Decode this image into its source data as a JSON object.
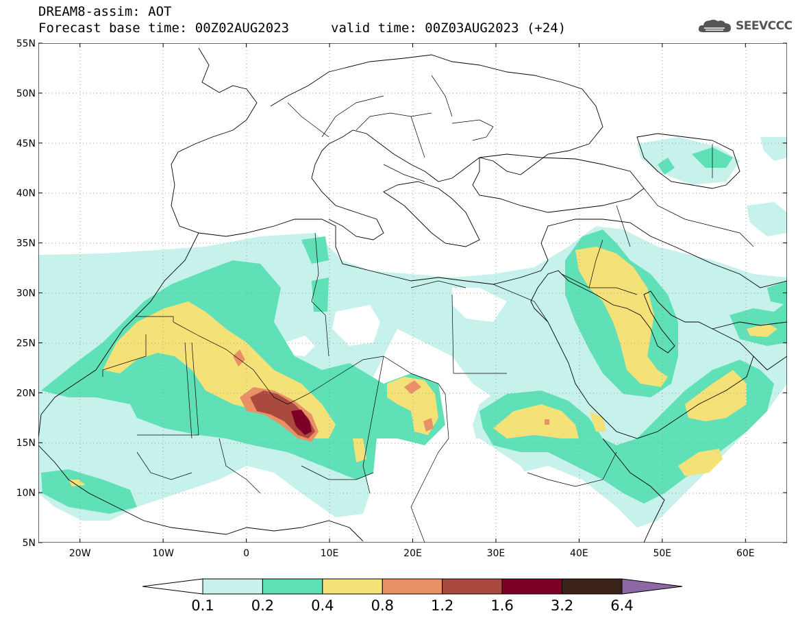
{
  "header": {
    "title_line1": "DREAM8-assim: AOT",
    "title_line2": "Forecast base time: 00Z02AUG2023",
    "valid_time": "valid time: 00Z03AUG2023 (+24)"
  },
  "logo": {
    "text": "SEEVCCC",
    "icon": "cloud-icon"
  },
  "map": {
    "lon_range": [
      -25,
      65
    ],
    "lat_range": [
      5,
      55
    ],
    "lat_ticks": [
      {
        "value": 55,
        "label": "55N"
      },
      {
        "value": 50,
        "label": "50N"
      },
      {
        "value": 45,
        "label": "45N"
      },
      {
        "value": 40,
        "label": "40N"
      },
      {
        "value": 35,
        "label": "35N"
      },
      {
        "value": 30,
        "label": "30N"
      },
      {
        "value": 25,
        "label": "25N"
      },
      {
        "value": 20,
        "label": "20N"
      },
      {
        "value": 15,
        "label": "15N"
      },
      {
        "value": 10,
        "label": "10N"
      },
      {
        "value": 5,
        "label": "5N"
      }
    ],
    "lon_ticks": [
      {
        "value": -20,
        "label": "20W"
      },
      {
        "value": -10,
        "label": "10W"
      },
      {
        "value": 0,
        "label": "0"
      },
      {
        "value": 10,
        "label": "10E"
      },
      {
        "value": 20,
        "label": "20E"
      },
      {
        "value": 30,
        "label": "30E"
      },
      {
        "value": 40,
        "label": "40E"
      },
      {
        "value": 50,
        "label": "50E"
      },
      {
        "value": 60,
        "label": "60E"
      }
    ]
  },
  "colorbar": {
    "levels": [
      "0.1",
      "0.2",
      "0.4",
      "0.8",
      "1.2",
      "1.6",
      "3.2",
      "6.4"
    ],
    "colors": [
      "#ffffff",
      "#c7f1eb",
      "#5fe0b6",
      "#f4e278",
      "#ea9066",
      "#aa4a3f",
      "#7c0024",
      "#3a2218",
      "#8c68a4"
    ]
  }
}
